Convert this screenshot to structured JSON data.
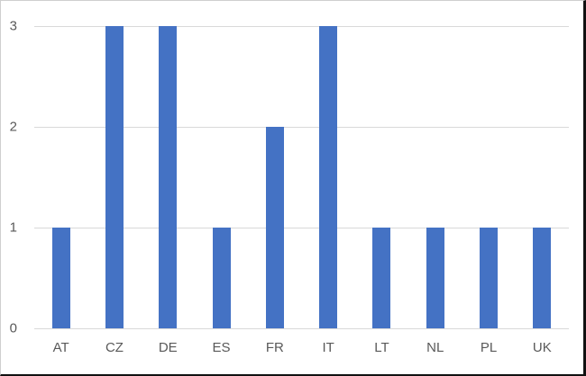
{
  "chart_data": {
    "type": "bar",
    "title": "",
    "xlabel": "",
    "ylabel": "",
    "categories": [
      "AT",
      "CZ",
      "DE",
      "ES",
      "FR",
      "IT",
      "LT",
      "NL",
      "PL",
      "UK"
    ],
    "values": [
      1,
      3,
      3,
      1,
      2,
      3,
      1,
      1,
      1,
      1
    ],
    "ylim": [
      0,
      3
    ],
    "yticks": [
      0,
      1,
      2,
      3
    ],
    "grid": true,
    "legend": false,
    "colors": {
      "bar": "#4472C4",
      "gridline": "#D9D9D9",
      "axis_line": "#D9D9D9",
      "tick_label": "#595959",
      "background": "#FFFFFF"
    }
  }
}
